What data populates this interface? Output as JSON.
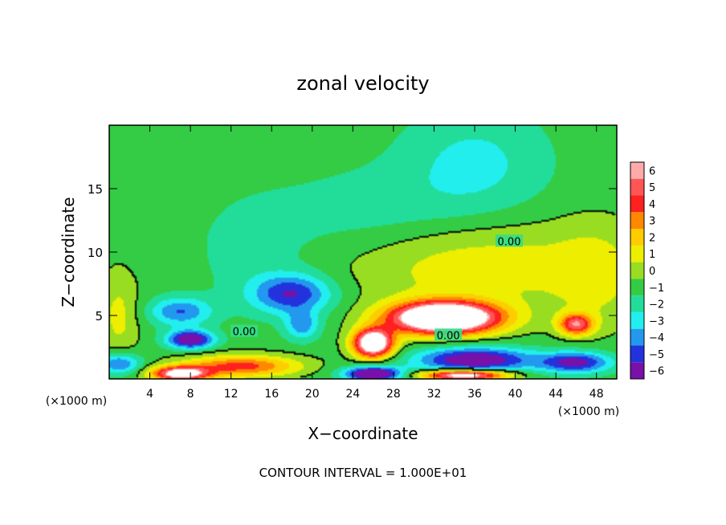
{
  "chart_data": {
    "type": "heatmap",
    "title": "zonal velocity",
    "xlabel": "X−coordinate",
    "ylabel": "Z−coordinate",
    "x_unit_left": "(×1000 m)",
    "x_unit_right": "(×1000 m)",
    "xlim": [
      0,
      50
    ],
    "ylim": [
      0,
      20
    ],
    "xticks": [
      4,
      8,
      12,
      16,
      20,
      24,
      28,
      32,
      36,
      40,
      44,
      48
    ],
    "yticks": [
      5,
      10,
      15
    ],
    "colorbar": {
      "levels": [
        6,
        5,
        4,
        3,
        2,
        1,
        0,
        -1,
        -2,
        -3,
        -4,
        -5,
        -6
      ],
      "labels": [
        "6",
        "5",
        "4",
        "3",
        "2",
        "1",
        "0",
        "−1",
        "−2",
        "−3",
        "−4",
        "−5",
        "−6"
      ],
      "colors": [
        "#ffaaaa",
        "#ff5555",
        "#ff2020",
        "#ff8800",
        "#ffcc00",
        "#eeee00",
        "#99dd22",
        "#33cc44",
        "#22dd99",
        "#22eeee",
        "#2299ee",
        "#2233dd",
        "#7711aa"
      ]
    },
    "background_value": -0.5,
    "field": [
      {
        "x": 33,
        "y": 4.8,
        "sx": 3.8,
        "sy": 0.9,
        "amp": 12
      },
      {
        "x": 26,
        "y": 2.8,
        "sx": 1.4,
        "sy": 0.8,
        "amp": 10
      },
      {
        "x": 46,
        "y": 4.3,
        "sx": 1.2,
        "sy": 0.6,
        "amp": 6
      },
      {
        "x": 8,
        "y": 3.1,
        "sx": 1.6,
        "sy": 0.5,
        "amp": -6
      },
      {
        "x": 7,
        "y": 5.3,
        "sx": 2.2,
        "sy": 0.8,
        "amp": -3.5
      },
      {
        "x": 18,
        "y": 6.7,
        "sx": 2.8,
        "sy": 1.1,
        "amp": -4.5
      },
      {
        "x": 19,
        "y": 4.2,
        "sx": 1.2,
        "sy": 0.8,
        "amp": -3
      },
      {
        "x": 1,
        "y": 1.2,
        "sx": 1.5,
        "sy": 0.6,
        "amp": -4
      },
      {
        "x": 36,
        "y": 1.5,
        "sx": 4,
        "sy": 0.7,
        "amp": -6
      },
      {
        "x": 46,
        "y": 1.3,
        "sx": 2.5,
        "sy": 0.6,
        "amp": -5
      },
      {
        "x": 26,
        "y": 0.4,
        "sx": 2,
        "sy": 0.4,
        "amp": -7
      },
      {
        "x": 13,
        "y": 1.0,
        "sx": 4,
        "sy": 0.6,
        "amp": 5
      },
      {
        "x": 7,
        "y": 0.4,
        "sx": 2,
        "sy": 0.4,
        "amp": 8
      },
      {
        "x": 35,
        "y": 0.3,
        "sx": 3,
        "sy": 0.3,
        "amp": 9
      },
      {
        "x": 36,
        "y": 9,
        "sx": 9,
        "sy": 2.5,
        "amp": 2.2
      },
      {
        "x": 48,
        "y": 8,
        "sx": 3,
        "sy": 3,
        "amp": 1.5
      },
      {
        "x": 1,
        "y": 5,
        "sx": 1.5,
        "sy": 2.5,
        "amp": 1.8
      },
      {
        "x": 36,
        "y": 17,
        "sx": 5,
        "sy": 3,
        "amp": -1.8
      },
      {
        "x": 26,
        "y": 13,
        "sx": 7,
        "sy": 2.5,
        "amp": -1.1
      },
      {
        "x": 14,
        "y": 10,
        "sx": 4,
        "sy": 3,
        "amp": -0.9
      }
    ],
    "contour_labels": [
      {
        "text": "0.00",
        "x": 13.3,
        "y": 3.7
      },
      {
        "text": "0.00",
        "x": 39.4,
        "y": 10.8
      },
      {
        "text": "0.00",
        "x": 33.4,
        "y": 3.4
      }
    ],
    "footer": "CONTOUR INTERVAL = 1.000E+01"
  }
}
